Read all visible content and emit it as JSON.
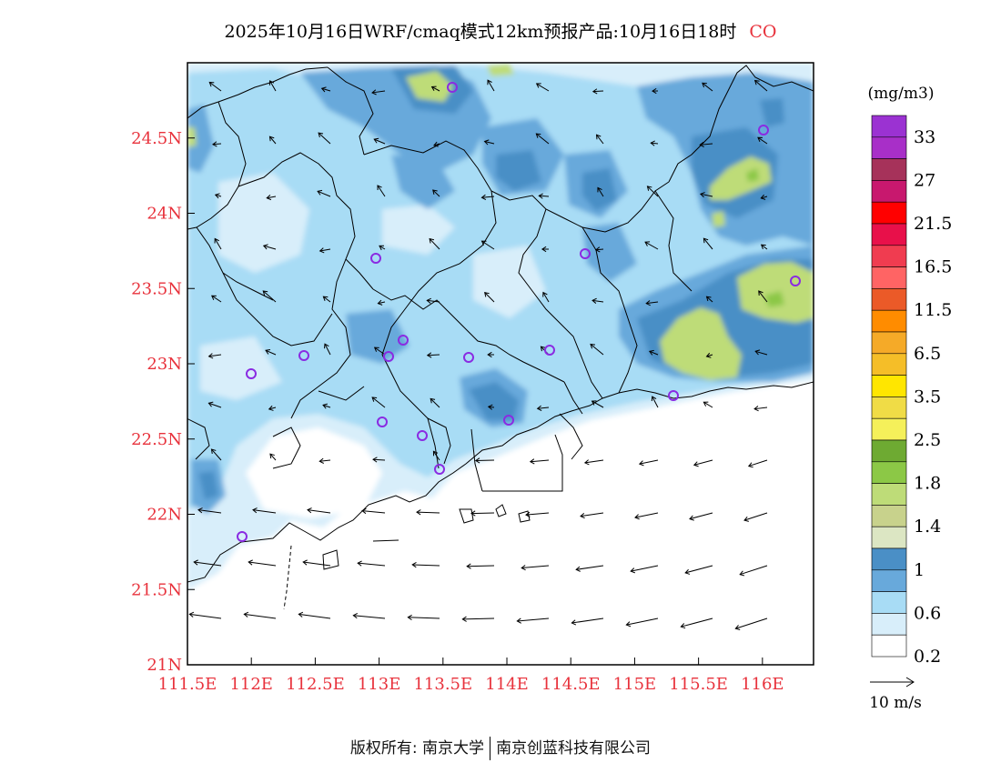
{
  "title": {
    "main": "2025年10月16日WRF/cmaq模式12km预报产品:10月16日18时",
    "species": "CO"
  },
  "axes": {
    "lat_labels": [
      "24.5N",
      "24N",
      "23.5N",
      "23N",
      "22.5N",
      "22N",
      "21.5N",
      "21N"
    ],
    "lat_values": [
      24.5,
      24,
      23.5,
      23,
      22.5,
      22,
      21.5,
      21
    ],
    "lon_labels": [
      "111.5E",
      "112E",
      "112.5E",
      "113E",
      "113.5E",
      "114E",
      "114.5E",
      "115E",
      "115.5E",
      "116E"
    ],
    "lon_values": [
      111.5,
      112,
      112.5,
      113,
      113.5,
      114,
      114.5,
      115,
      115.5,
      116
    ],
    "lon_range": [
      111.5,
      116.4
    ],
    "lat_range": [
      21,
      25
    ],
    "label_color": "#e8323c"
  },
  "legend": {
    "unit": "(mg/m3)",
    "labels": [
      "33",
      "27",
      "21.5",
      "16.5",
      "11.5",
      "6.5",
      "3.5",
      "2.5",
      "1.8",
      "1.4",
      "1",
      "0.6",
      "0.2"
    ],
    "colors_top_to_bottom": [
      "#9b32d2",
      "#a82fc8",
      "#a6325a",
      "#c8186e",
      "#ff0000",
      "#e8104a",
      "#f03c50",
      "#ff6464",
      "#eb5a28",
      "#ff8c00",
      "#f5aa28",
      "#f5be28",
      "#ffe600",
      "#f0dc46",
      "#f5f05a",
      "#6eaa32",
      "#8cc846",
      "#bedc78",
      "#c8d28c",
      "#dce6c3",
      "#4a8fc6",
      "#68a9db",
      "#a8dcf5",
      "#d8eefa",
      "#ffffff"
    ]
  },
  "wind_key": {
    "label": "10 m/s"
  },
  "footer": {
    "left": "版权所有: 南京大学",
    "right": "南京创蓝科技有限公司"
  },
  "colors": {
    "station_marker": "#8a2be2",
    "arrow": "#000000"
  }
}
